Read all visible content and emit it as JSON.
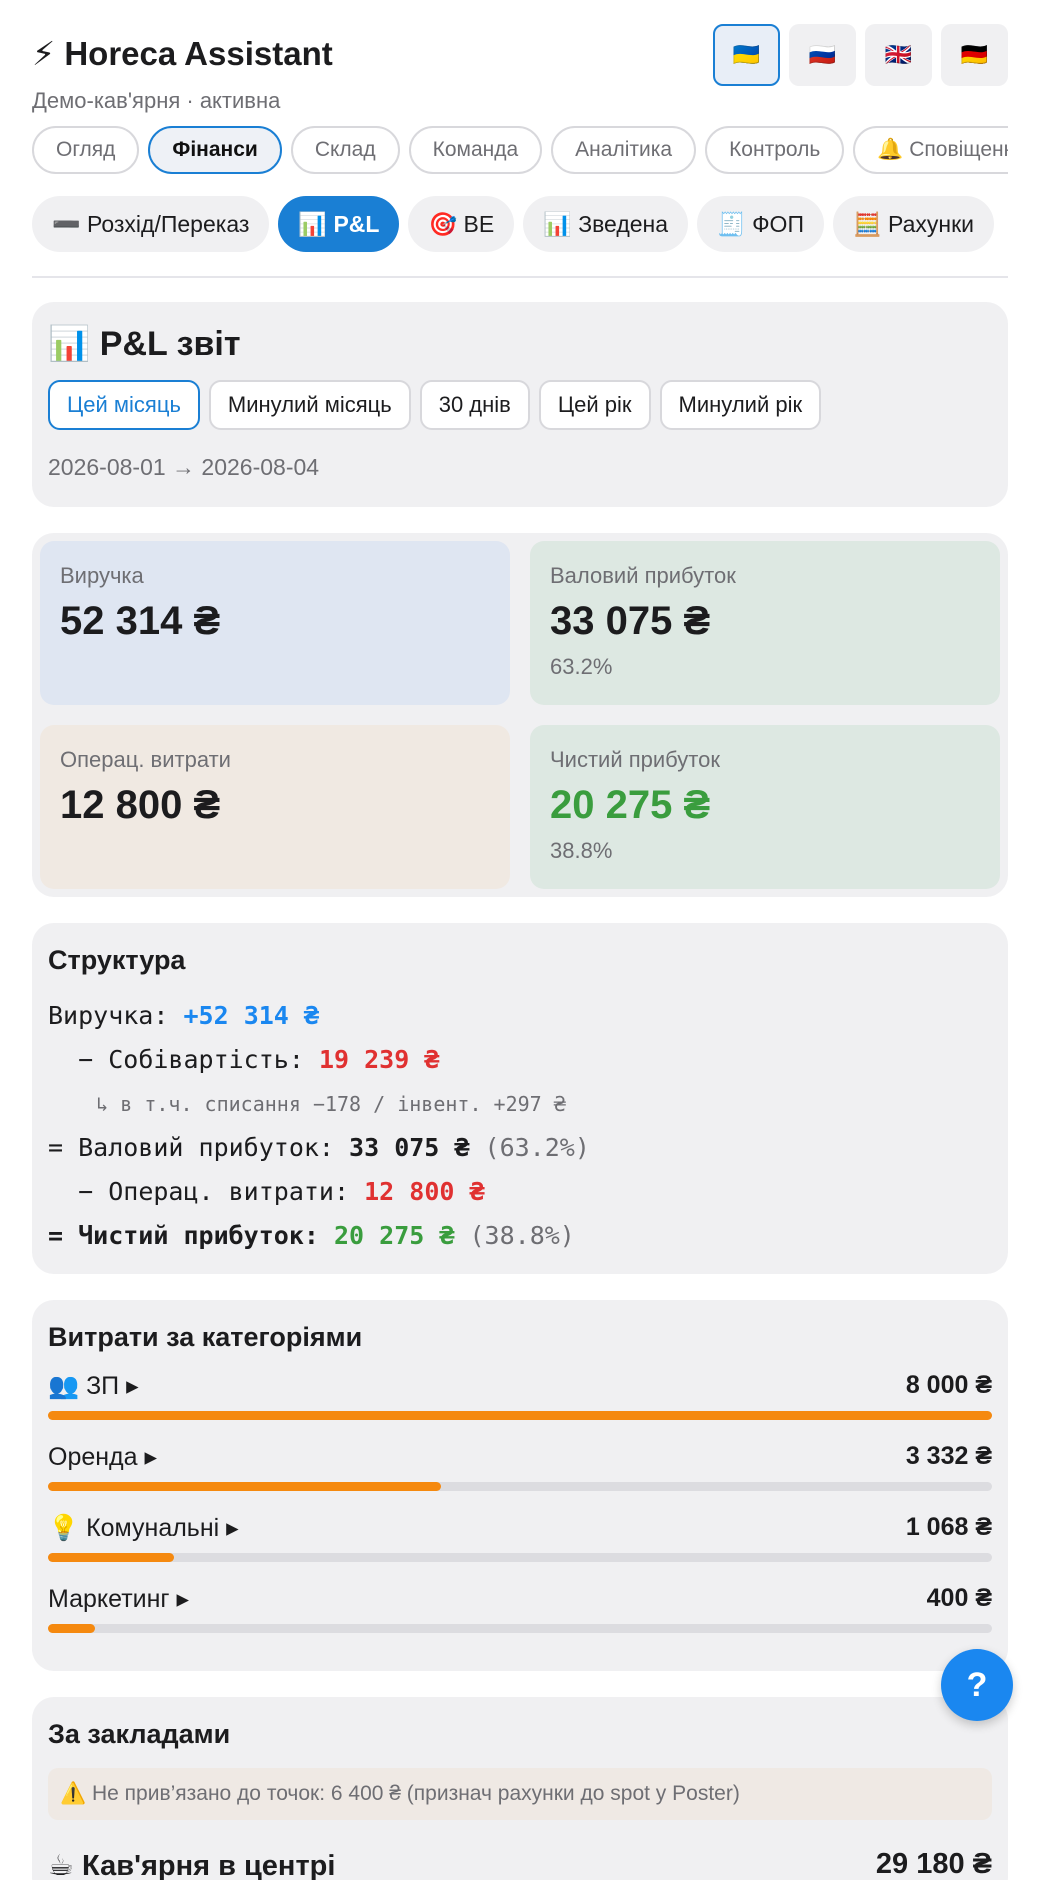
{
  "header": {
    "icon": "⚡",
    "title": "Horeca Assistant",
    "subtitle": "Демо-кав'ярня · активна",
    "languages": [
      "🇺🇦",
      "🇷🇺",
      "🇬🇧",
      "🇩🇪"
    ]
  },
  "tabs": [
    "Огляд",
    "Фінанси",
    "Склад",
    "Команда",
    "Аналітика",
    "Контроль",
    "🔔 Сповіщення"
  ],
  "subtabs": [
    "➖ Розхід/Переказ",
    "📊 P&L",
    "🎯 BE",
    "📊 Зведена",
    "🧾 ФОП",
    "🧮 Рахунки"
  ],
  "pl_report": {
    "title": "📊 P&L звіт",
    "periods": [
      "Цей місяць",
      "Минулий місяць",
      "30 днів",
      "Цей рік",
      "Минулий рік"
    ],
    "date_range": "2026-08-01 → 2026-08-04"
  },
  "kpis": [
    {
      "label": "Виручка",
      "value": "52 314 ₴"
    },
    {
      "label": "Валовий прибуток",
      "value": "33 075 ₴",
      "percent": "63.2%"
    },
    {
      "label": "Операц. витрати",
      "value": "12 800 ₴"
    },
    {
      "label": "Чистий прибуток",
      "value": "20 275 ₴",
      "percent": "38.8%"
    }
  ],
  "structure": {
    "title": "Структура",
    "revenue_label": "Виручка:",
    "revenue": "+52 314 ₴",
    "cogs_label": "− Собівартість:",
    "cogs": "19 239 ₴",
    "cogs_note": "↳ в т.ч. списання −178 / інвент. +297 ₴",
    "gross_label": "= Валовий прибуток:",
    "gross": "33 075 ₴",
    "gross_percent": "(63.2%)",
    "opex_label": "− Операц. витрати:",
    "opex": "12 800 ₴",
    "net_label": "= Чистий прибуток:",
    "net": "20 275 ₴",
    "net_percent": "(38.8%)"
  },
  "expenses": {
    "title": "Витрати за категоріями",
    "items": [
      {
        "label": "👥 ЗП ▸",
        "amount": 8000,
        "amount_label": "8 000 ₴"
      },
      {
        "label": "Оренда ▸",
        "amount": 3332,
        "amount_label": "3 332 ₴"
      },
      {
        "label": "💡 Комунальні ▸",
        "amount": 1068,
        "amount_label": "1 068 ₴"
      },
      {
        "label": "Маркетинг ▸",
        "amount": 400,
        "amount_label": "400 ₴"
      }
    ]
  },
  "venues": {
    "title": "За закладами",
    "warning": "⚠️ Не прив’язано до точок: 6 400 ₴ (признач рахунки до spot у Poster)",
    "items": [
      {
        "name": "☕ Кав'ярня в центрі",
        "amount": "29 180 ₴"
      }
    ]
  },
  "help_button": "?"
}
